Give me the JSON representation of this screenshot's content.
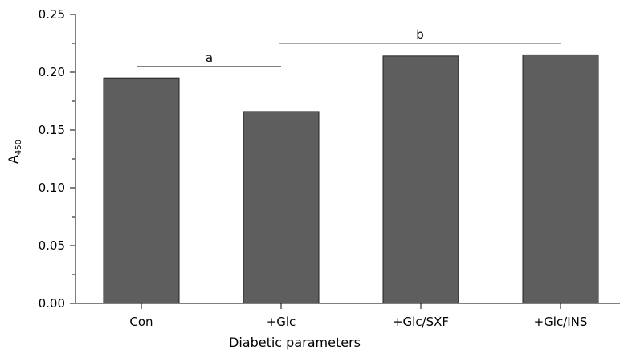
{
  "chart_data": {
    "type": "bar",
    "categories": [
      "Con",
      "+Glc",
      "+Glc/SXF",
      "+Glc/INS"
    ],
    "values": [
      0.195,
      0.166,
      0.214,
      0.215
    ],
    "title": "",
    "xlabel": "Diabetic parameters",
    "ylabel_main": "A",
    "ylabel_sub": "450",
    "ylim": [
      0,
      0.25
    ],
    "yticks": [
      "0.00",
      "0.05",
      "0.10",
      "0.15",
      "0.20",
      "0.25"
    ],
    "grid": false,
    "bar_color": "#5e5e5e",
    "significance": [
      {
        "label": "a",
        "from": "Con",
        "to": "+Glc",
        "level": 0.205
      },
      {
        "label": "b",
        "from": "+Glc",
        "to": "+Glc/INS",
        "level": 0.225
      }
    ]
  }
}
